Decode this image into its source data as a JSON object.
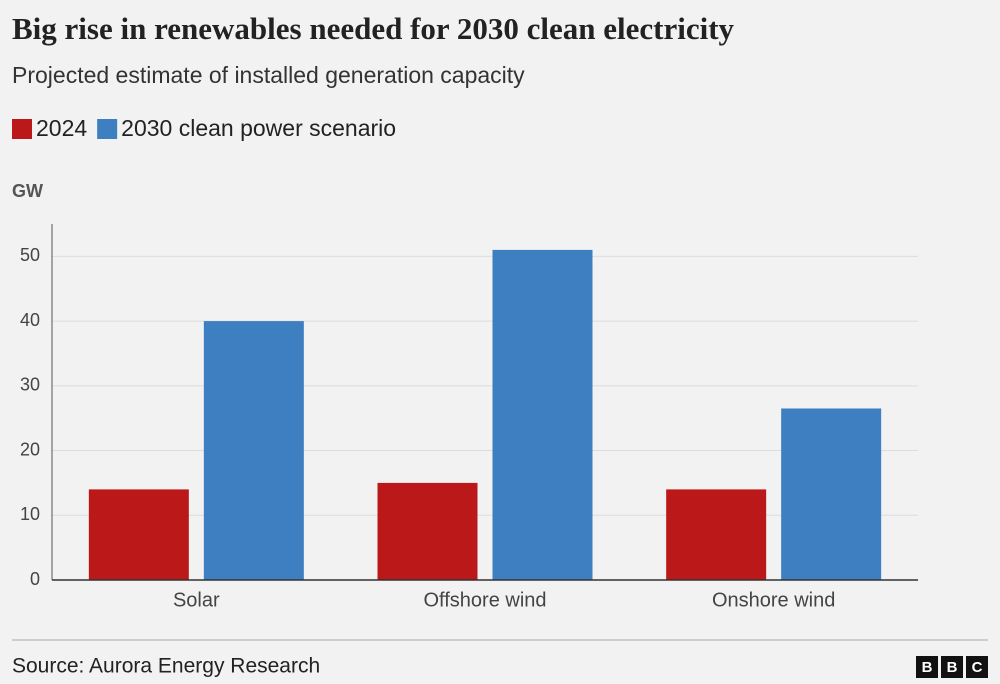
{
  "chart_data": {
    "type": "bar",
    "title": "Big rise in renewables needed for 2030 clean electricity",
    "subtitle": "Projected estimate of installed generation capacity",
    "y_label": "GW",
    "categories": [
      "Solar",
      "Offshore wind",
      "Onshore wind"
    ],
    "series": [
      {
        "name": "2024",
        "color": "#bb1919",
        "values": [
          14,
          15,
          14
        ]
      },
      {
        "name": "2030 clean power scenario",
        "color": "#3d7fc1",
        "values": [
          40,
          51,
          26.5
        ]
      }
    ],
    "ylim": [
      0,
      55
    ],
    "yticks": [
      0,
      10,
      20,
      30,
      40,
      50
    ],
    "grid": true,
    "source": "Source: Aurora Energy Research",
    "logo": [
      "B",
      "B",
      "C"
    ]
  }
}
